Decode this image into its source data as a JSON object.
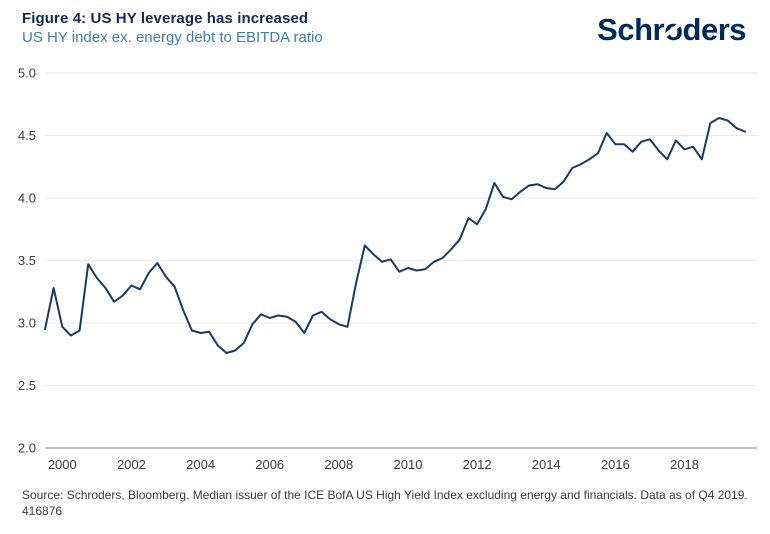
{
  "header": {
    "title": "Figure 4: US HY leverage has increased",
    "subtitle": "US HY index ex. energy debt to EBITDA ratio",
    "logo_pre": "Schr",
    "logo_o": "o",
    "logo_post": "ders"
  },
  "colors": {
    "title": "#14294e",
    "subtitle": "#3e7fa8",
    "logo": "#002a5e",
    "line": "#1b3a5e",
    "gridline": "#eaeaea",
    "axis_line": "#9c9c9c",
    "tick_label": "#3a3a3a"
  },
  "chart_data": {
    "type": "line",
    "title": "Figure 4: US HY leverage has increased",
    "subtitle": "US HY index ex. energy debt to EBITDA ratio",
    "series_name": "US HY index ex. energy debt to EBITDA ratio",
    "frequency": "quarterly",
    "x_start": "1999 Q3",
    "x_end": "2019 Q4",
    "values": [
      2.95,
      3.28,
      2.97,
      2.9,
      2.94,
      3.47,
      3.36,
      3.28,
      3.17,
      3.22,
      3.3,
      3.27,
      3.4,
      3.48,
      3.37,
      3.29,
      3.1,
      2.94,
      2.92,
      2.93,
      2.82,
      2.76,
      2.78,
      2.84,
      2.99,
      3.07,
      3.04,
      3.06,
      3.05,
      3.01,
      2.92,
      3.06,
      3.09,
      3.03,
      2.99,
      2.97,
      3.32,
      3.62,
      3.55,
      3.49,
      3.51,
      3.41,
      3.44,
      3.42,
      3.43,
      3.49,
      3.52,
      3.59,
      3.67,
      3.84,
      3.79,
      3.91,
      4.12,
      4.01,
      3.99,
      4.05,
      4.1,
      4.11,
      4.08,
      4.07,
      4.13,
      4.24,
      4.27,
      4.31,
      4.36,
      4.52,
      4.43,
      4.43,
      4.37,
      4.45,
      4.47,
      4.38,
      4.31,
      4.46,
      4.39,
      4.41,
      4.31,
      4.6,
      4.64,
      4.62,
      4.56,
      4.53
    ],
    "y_ticks": [
      5.0,
      4.5,
      4.0,
      3.5,
      3.0,
      2.5,
      2.0
    ],
    "ylim": [
      2.0,
      5.0
    ],
    "x_tick_years": [
      2000,
      2002,
      2004,
      2006,
      2008,
      2010,
      2012,
      2014,
      2016,
      2018
    ],
    "grid": "horizontal",
    "legend": "none"
  },
  "footer": {
    "source_line": "Source: Schroders, Bloomberg. Median issuer of the ICE BofA US High Yield Index excluding energy and financials. Data as of Q4 2019.",
    "code_line": "416876"
  }
}
